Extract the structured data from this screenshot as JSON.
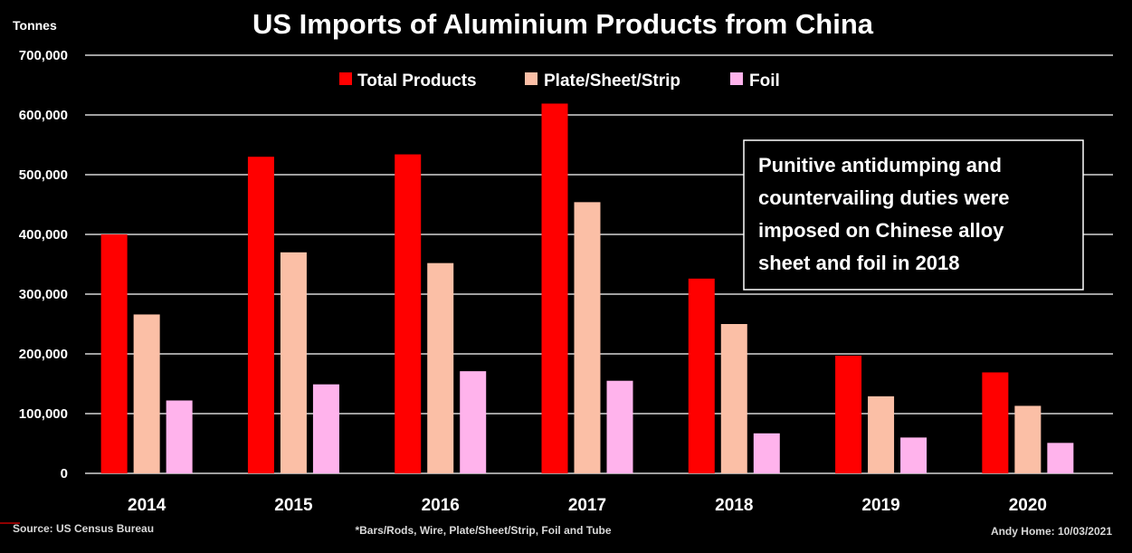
{
  "chart_data": {
    "type": "bar",
    "title": "US Imports of Aluminium Products from China",
    "ylabel": "Tonnes",
    "xlabel": "",
    "ylim": [
      0,
      700000
    ],
    "yticks": [
      0,
      100000,
      200000,
      300000,
      400000,
      500000,
      600000,
      700000
    ],
    "ytick_labels": [
      "0",
      "100,000",
      "200,000",
      "300,000",
      "400,000",
      "500,000",
      "600,000",
      "700,000"
    ],
    "grid": true,
    "legend_position": "top",
    "categories": [
      "2014",
      "2015",
      "2016",
      "2017",
      "2018",
      "2019",
      "2020"
    ],
    "series": [
      {
        "name": "Total Products",
        "color": "#ff0000",
        "values": [
          400000,
          530000,
          534000,
          619000,
          326000,
          197000,
          169000
        ]
      },
      {
        "name": "Plate/Sheet/Strip",
        "color": "#fbbfa6",
        "values": [
          266000,
          370000,
          352000,
          454000,
          250000,
          129000,
          113000
        ]
      },
      {
        "name": "Foil",
        "color": "#ffb3ec",
        "values": [
          122000,
          149000,
          171000,
          155000,
          67000,
          60000,
          51000
        ]
      }
    ],
    "annotation": {
      "lines": [
        "Punitive antidumping and",
        "countervailing duties were",
        "imposed on Chinese alloy",
        "sheet and foil in 2018"
      ]
    }
  },
  "footer": {
    "source": "Source: US Census Bureau",
    "note": "*Bars/Rods, Wire, Plate/Sheet/Strip, Foil and Tube",
    "author": "Andy Home: 10/03/2021"
  }
}
